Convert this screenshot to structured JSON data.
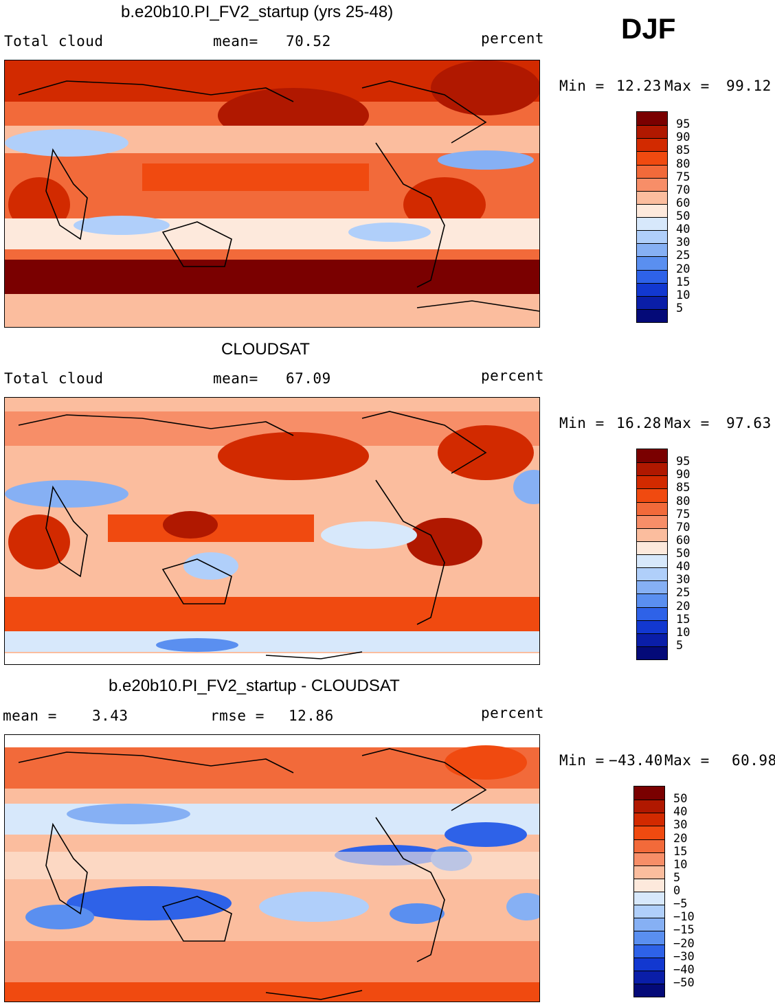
{
  "season": "DJF",
  "panels": [
    {
      "title": "b.e20b10.PI_FV2_startup (yrs 25-48)",
      "left_label": "Total cloud",
      "center_label": "mean=",
      "center_value": "70.52",
      "right_label": "percent",
      "min_label": "Min =",
      "min_value": "12.23",
      "max_label": "Max =",
      "max_value": "99.12",
      "colorbar_labels": [
        "95",
        "90",
        "85",
        "80",
        "75",
        "70",
        "60",
        "50",
        "40",
        "30",
        "25",
        "20",
        "15",
        "10",
        "5"
      ]
    },
    {
      "title": "CLOUDSAT",
      "left_label": "Total cloud",
      "center_label": "mean=",
      "center_value": "67.09",
      "right_label": "percent",
      "min_label": "Min =",
      "min_value": "16.28",
      "max_label": "Max =",
      "max_value": "97.63",
      "colorbar_labels": [
        "95",
        "90",
        "85",
        "80",
        "75",
        "70",
        "60",
        "50",
        "40",
        "30",
        "25",
        "20",
        "15",
        "10",
        "5"
      ]
    },
    {
      "title": "b.e20b10.PI_FV2_startup - CLOUDSAT",
      "mean_label": "mean =",
      "mean_value": "3.43",
      "rmse_label": "rmse =",
      "rmse_value": "12.86",
      "right_label": "percent",
      "min_label": "Min =",
      "min_value": "−43.40",
      "max_label": "Max =",
      "max_value": "60.98",
      "colorbar_labels": [
        "50",
        "40",
        "30",
        "20",
        "15",
        "10",
        "5",
        "0",
        "−5",
        "−10",
        "−15",
        "−20",
        "−30",
        "−40",
        "−50"
      ]
    }
  ],
  "colors": {
    "scale": [
      "#7a0000",
      "#b01800",
      "#d22a00",
      "#f04a10",
      "#f26a3a",
      "#f78e68",
      "#fbbd9e",
      "#fde9dc",
      "#d7e8fb",
      "#b0cffa",
      "#86b0f4",
      "#5a8ff0",
      "#2e62e8",
      "#1238d0",
      "#0a1ea8",
      "#040a78"
    ]
  }
}
